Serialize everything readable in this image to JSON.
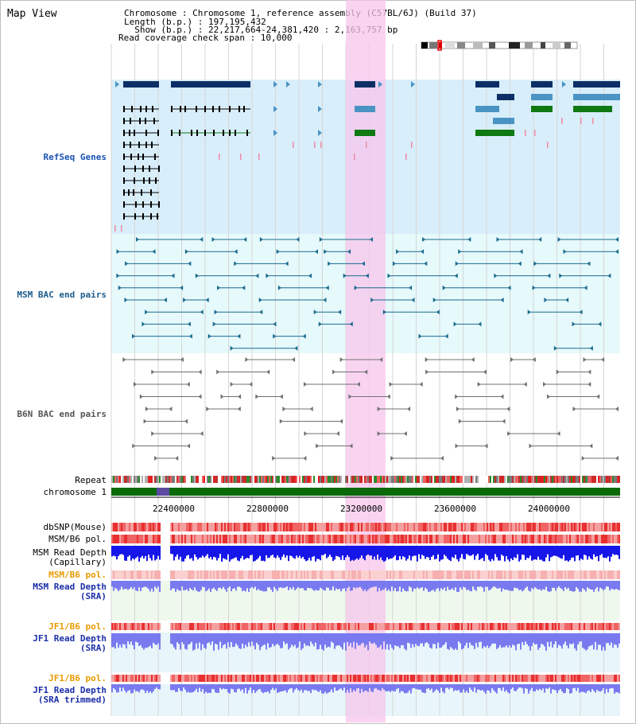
{
  "title": "Map View",
  "header": {
    "chromosome_line": "Chromosome     : Chromosome 1, reference assembly (C57BL/6J) (Build 37)",
    "length_line": "Length (b.p.) : 197,195,432",
    "show_line": "  Show (b.p.) : 22,217,664-24,381,420 : 2,163,757 bp",
    "coverage_line": "Read coverage check span : 10,000"
  },
  "tracks": {
    "refseq": "RefSeq Genes",
    "msm_bac": "MSM BAC end pairs",
    "b6n_bac": "B6N BAC end pairs",
    "repeat": "Repeat",
    "chromosome": "chromosome 1",
    "dbsnp": "dbSNP(Mouse)",
    "msm_b6_pol": "MSM/B6 pol.",
    "msm_read_depth_cap_1": "MSM Read Depth",
    "msm_read_depth_cap_2": "(Capillary)",
    "msm_b6_pol_sra": "MSM/B6 pol.",
    "msm_read_depth_sra_1": "MSM Read Depth",
    "msm_read_depth_sra_2": "(SRA)",
    "jf1_b6_pol": "JF1/B6 pol.",
    "jf1_read_depth_1": "JF1 Read Depth",
    "jf1_read_depth_2": "(SRA)",
    "jf1_b6_pol_trim": "JF1/B6 pol.",
    "jf1_read_depth_trim_1": "JF1 Read Depth",
    "jf1_read_depth_trim_2": "(SRA trimmed)"
  },
  "axis_ticks": [
    "22400000",
    "22800000",
    "23200000",
    "23600000",
    "24000000"
  ],
  "colors": {
    "refseq_bg": "#d8eefa",
    "msm_bg": "#e6f9fb",
    "highlight": "#f7c6ec",
    "gene_navy": "#0d2f66",
    "gene_blue": "#4a94c3",
    "gene_green": "#0f7a12",
    "bac_teal": "#1b6b8e",
    "bac_gray": "#707070",
    "chrom_green": "#0a6a0a",
    "depth_blue": "#1616e8",
    "depth_lav": "#7a7af0"
  }
}
